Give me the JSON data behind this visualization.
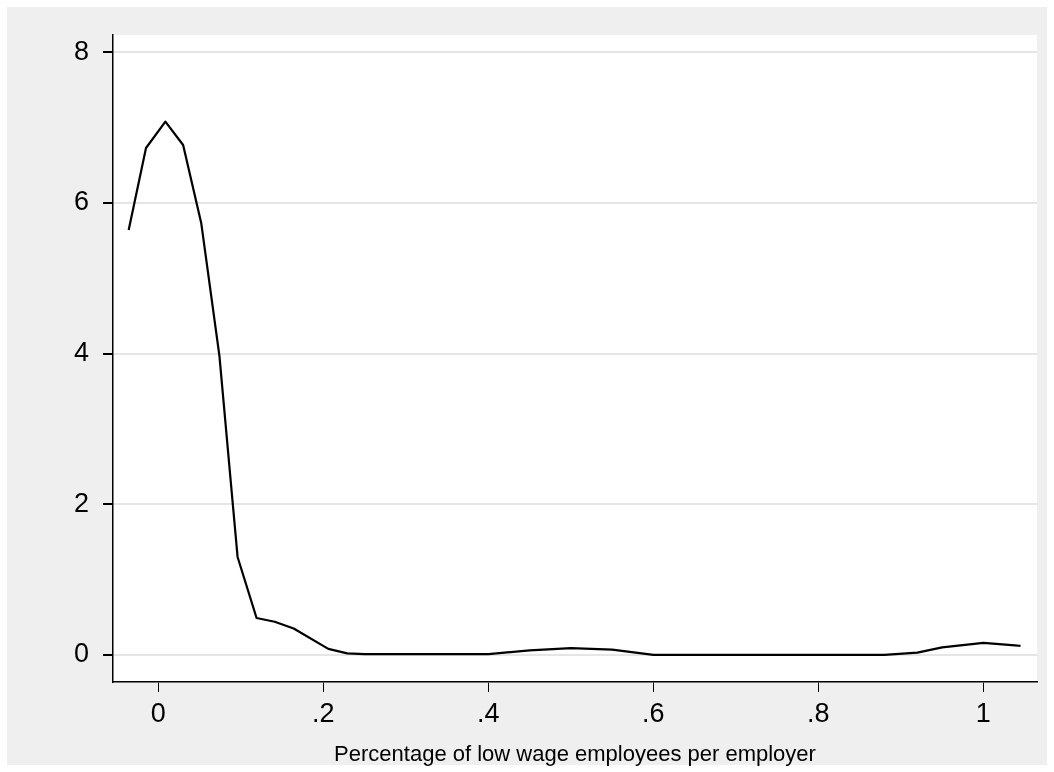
{
  "chart_data": {
    "type": "line",
    "xlabel": "Percentage of low wage employees per employer",
    "x": [
      -0.036,
      -0.015,
      0.0085,
      0.03,
      0.052,
      0.074,
      0.096,
      0.119,
      0.141,
      0.164,
      0.206,
      0.229,
      0.25,
      0.3,
      0.35,
      0.4,
      0.45,
      0.5,
      0.55,
      0.6,
      0.7,
      0.8,
      0.88,
      0.92,
      0.95,
      1.0,
      1.045
    ],
    "series": [
      {
        "color": "#000000",
        "values": [
          5.64,
          6.73,
          7.08,
          6.77,
          5.73,
          3.97,
          1.3,
          0.49,
          0.44,
          0.35,
          0.08,
          0.02,
          0.01,
          0.01,
          0.01,
          0.01,
          0.06,
          0.09,
          0.07,
          0,
          0,
          0,
          0,
          0.03,
          0.1,
          0.16,
          0.12
        ]
      }
    ],
    "xlim": [
      -0.055,
      1.065
    ],
    "ylim": [
      -0.36,
      8.23
    ],
    "xticks": [
      0,
      {
        "value": 0.2,
        "label": ".2"
      },
      {
        "value": 0.4,
        "label": ".4"
      },
      {
        "value": 0.6,
        "label": ".6"
      },
      {
        "value": 0.8,
        "label": ".8"
      },
      1
    ],
    "yticks": [
      0,
      2,
      4,
      6,
      8
    ],
    "grid": "y",
    "legend": false,
    "marker": "none",
    "line_style": "solid"
  }
}
